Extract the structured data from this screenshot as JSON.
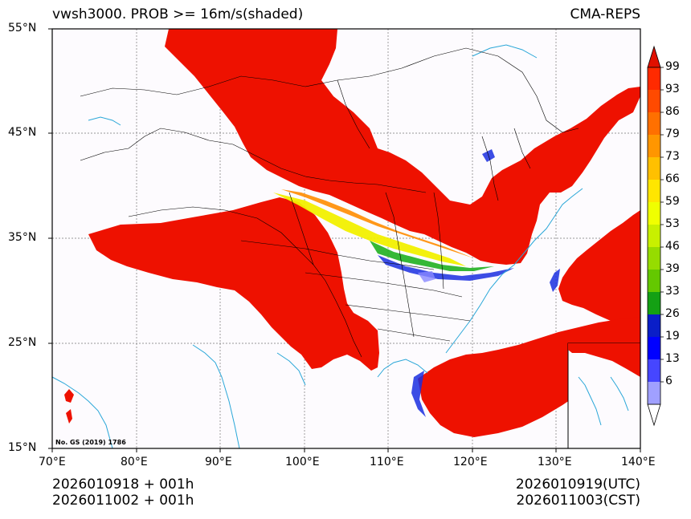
{
  "header": {
    "title_left": "vwsh3000. PROB >= 16m/s(shaded)",
    "title_right": "CMA-REPS"
  },
  "axes": {
    "lat_labels": [
      "55°N",
      "45°N",
      "35°N",
      "25°N",
      "15°N"
    ],
    "lon_labels": [
      "70°E",
      "80°E",
      "90°E",
      "100°E",
      "110°E",
      "120°E",
      "130°E",
      "140°E"
    ]
  },
  "map_note": "No. GS (2019) 1786",
  "colorbar": {
    "labels": [
      "99",
      "93",
      "86",
      "79",
      "73",
      "66",
      "59",
      "53",
      "46",
      "39",
      "33",
      "26",
      "19",
      "13",
      "6"
    ],
    "colors": [
      "#ff2a00",
      "#ff4a00",
      "#ff7000",
      "#ff9600",
      "#ffc000",
      "#ffe600",
      "#f0ff00",
      "#c8f000",
      "#96dc00",
      "#64c800",
      "#14a014",
      "#0a1ec8",
      "#0000ff",
      "#4646ff",
      "#a0a0ff"
    ],
    "top_arrow_color": "#e01000",
    "bottom_arrow_color": "#ffffff"
  },
  "footer": {
    "init_utc": "2026010918  +  001h",
    "init_cst": "2026011002  +  001h",
    "valid_utc": "2026010919(UTC)",
    "valid_cst": "2026011003(CST)"
  },
  "colors": {
    "fill_high": "#ee1100",
    "fill_orange": "#ff8c00",
    "fill_yellow": "#f2f000",
    "fill_green": "#20b020",
    "fill_blue": "#1a2ee0",
    "fill_lightblue": "#8888ff",
    "coast": "#2aa7d8",
    "border": "#000000",
    "ocean_bg": "#fdfbfe"
  }
}
